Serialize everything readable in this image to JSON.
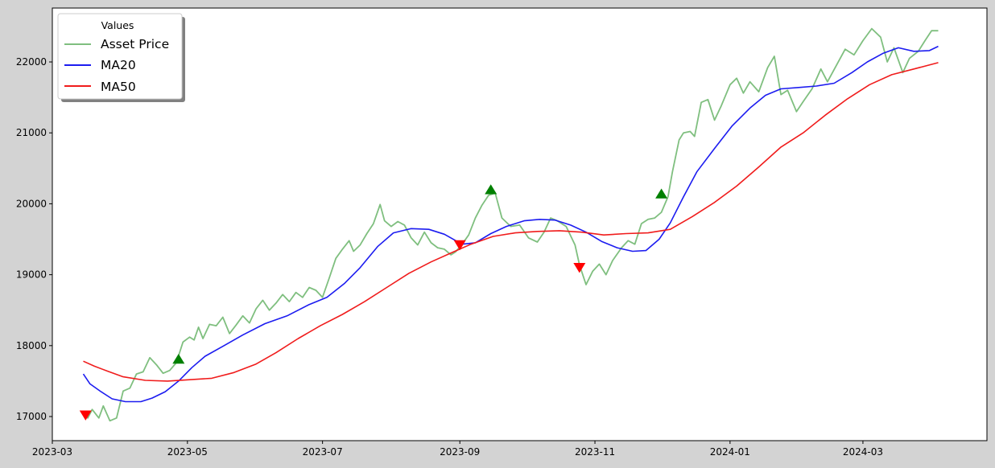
{
  "chart_data": {
    "type": "line",
    "title": "",
    "xlabel": "",
    "ylabel": "",
    "grid": false,
    "legend": {
      "title": "Values",
      "placement": "top-left",
      "entries": [
        {
          "label": "Asset Price",
          "color": "#7fbf7f"
        },
        {
          "label": "MA20",
          "color": "#1c1cf0"
        },
        {
          "label": "MA50",
          "color": "#f01c1c"
        }
      ]
    },
    "xlim": [
      "2023-03-01",
      "2024-04-26"
    ],
    "ylim": [
      16660,
      22760
    ],
    "x_ticks": [
      {
        "date": "2023-03-01",
        "label": "2023-03"
      },
      {
        "date": "2023-05-01",
        "label": "2023-05"
      },
      {
        "date": "2023-07-01",
        "label": "2023-07"
      },
      {
        "date": "2023-09-01",
        "label": "2023-09"
      },
      {
        "date": "2023-11-01",
        "label": "2023-11"
      },
      {
        "date": "2024-01-01",
        "label": "2024-01"
      },
      {
        "date": "2024-03-01",
        "label": "2024-03"
      }
    ],
    "y_ticks": [
      {
        "value": 17000,
        "label": "17000"
      },
      {
        "value": 18000,
        "label": "18000"
      },
      {
        "value": 19000,
        "label": "19000"
      },
      {
        "value": 20000,
        "label": "20000"
      },
      {
        "value": 21000,
        "label": "21000"
      },
      {
        "value": 22000,
        "label": "22000"
      }
    ],
    "series": [
      {
        "name": "Asset Price",
        "color": "#7fbf7f",
        "points": [
          [
            "2023-03-15",
            17050
          ],
          [
            "2023-03-17",
            16980
          ],
          [
            "2023-03-19",
            17100
          ],
          [
            "2023-03-22",
            16980
          ],
          [
            "2023-03-24",
            17150
          ],
          [
            "2023-03-27",
            16940
          ],
          [
            "2023-03-30",
            16980
          ],
          [
            "2023-04-02",
            17360
          ],
          [
            "2023-04-05",
            17400
          ],
          [
            "2023-04-08",
            17600
          ],
          [
            "2023-04-11",
            17630
          ],
          [
            "2023-04-14",
            17830
          ],
          [
            "2023-04-17",
            17730
          ],
          [
            "2023-04-20",
            17610
          ],
          [
            "2023-04-23",
            17650
          ],
          [
            "2023-04-26",
            17760
          ],
          [
            "2023-04-29",
            18050
          ],
          [
            "2023-05-02",
            18120
          ],
          [
            "2023-05-04",
            18080
          ],
          [
            "2023-05-06",
            18260
          ],
          [
            "2023-05-08",
            18100
          ],
          [
            "2023-05-11",
            18300
          ],
          [
            "2023-05-14",
            18280
          ],
          [
            "2023-05-17",
            18400
          ],
          [
            "2023-05-20",
            18170
          ],
          [
            "2023-05-23",
            18290
          ],
          [
            "2023-05-26",
            18420
          ],
          [
            "2023-05-29",
            18320
          ],
          [
            "2023-06-01",
            18520
          ],
          [
            "2023-06-04",
            18640
          ],
          [
            "2023-06-07",
            18500
          ],
          [
            "2023-06-10",
            18600
          ],
          [
            "2023-06-13",
            18720
          ],
          [
            "2023-06-16",
            18620
          ],
          [
            "2023-06-19",
            18750
          ],
          [
            "2023-06-22",
            18680
          ],
          [
            "2023-06-25",
            18820
          ],
          [
            "2023-06-28",
            18780
          ],
          [
            "2023-07-01",
            18680
          ],
          [
            "2023-07-04",
            18950
          ],
          [
            "2023-07-07",
            19230
          ],
          [
            "2023-07-10",
            19360
          ],
          [
            "2023-07-13",
            19480
          ],
          [
            "2023-07-15",
            19330
          ],
          [
            "2023-07-18",
            19420
          ],
          [
            "2023-07-21",
            19580
          ],
          [
            "2023-07-24",
            19720
          ],
          [
            "2023-07-27",
            19990
          ],
          [
            "2023-07-29",
            19760
          ],
          [
            "2023-08-01",
            19680
          ],
          [
            "2023-08-04",
            19750
          ],
          [
            "2023-08-07",
            19700
          ],
          [
            "2023-08-10",
            19520
          ],
          [
            "2023-08-13",
            19420
          ],
          [
            "2023-08-16",
            19600
          ],
          [
            "2023-08-19",
            19450
          ],
          [
            "2023-08-22",
            19380
          ],
          [
            "2023-08-25",
            19360
          ],
          [
            "2023-08-28",
            19280
          ],
          [
            "2023-08-30",
            19320
          ],
          [
            "2023-09-02",
            19430
          ],
          [
            "2023-09-05",
            19560
          ],
          [
            "2023-09-08",
            19800
          ],
          [
            "2023-09-11",
            19980
          ],
          [
            "2023-09-14",
            20120
          ],
          [
            "2023-09-17",
            20150
          ],
          [
            "2023-09-20",
            19800
          ],
          [
            "2023-09-24",
            19680
          ],
          [
            "2023-09-28",
            19700
          ],
          [
            "2023-10-02",
            19520
          ],
          [
            "2023-10-06",
            19460
          ],
          [
            "2023-10-09",
            19600
          ],
          [
            "2023-10-12",
            19800
          ],
          [
            "2023-10-15",
            19760
          ],
          [
            "2023-10-19",
            19680
          ],
          [
            "2023-10-23",
            19420
          ],
          [
            "2023-10-25",
            19140
          ],
          [
            "2023-10-28",
            18860
          ],
          [
            "2023-10-31",
            19050
          ],
          [
            "2023-11-03",
            19150
          ],
          [
            "2023-11-06",
            19000
          ],
          [
            "2023-11-09",
            19200
          ],
          [
            "2023-11-13",
            19380
          ],
          [
            "2023-11-16",
            19480
          ],
          [
            "2023-11-19",
            19430
          ],
          [
            "2023-11-22",
            19720
          ],
          [
            "2023-11-25",
            19780
          ],
          [
            "2023-11-28",
            19800
          ],
          [
            "2023-12-01",
            19880
          ],
          [
            "2023-12-04",
            20100
          ],
          [
            "2023-12-06",
            20450
          ],
          [
            "2023-12-09",
            20900
          ],
          [
            "2023-12-11",
            21000
          ],
          [
            "2023-12-14",
            21020
          ],
          [
            "2023-12-16",
            20950
          ],
          [
            "2023-12-19",
            21430
          ],
          [
            "2023-12-22",
            21470
          ],
          [
            "2023-12-25",
            21180
          ],
          [
            "2023-12-28",
            21380
          ],
          [
            "2024-01-01",
            21680
          ],
          [
            "2024-01-04",
            21770
          ],
          [
            "2024-01-07",
            21560
          ],
          [
            "2024-01-10",
            21720
          ],
          [
            "2024-01-14",
            21580
          ],
          [
            "2024-01-18",
            21920
          ],
          [
            "2024-01-21",
            22080
          ],
          [
            "2024-01-24",
            21540
          ],
          [
            "2024-01-27",
            21600
          ],
          [
            "2024-01-31",
            21300
          ],
          [
            "2024-02-03",
            21440
          ],
          [
            "2024-02-07",
            21620
          ],
          [
            "2024-02-11",
            21900
          ],
          [
            "2024-02-14",
            21720
          ],
          [
            "2024-02-18",
            21950
          ],
          [
            "2024-02-22",
            22180
          ],
          [
            "2024-02-26",
            22100
          ],
          [
            "2024-03-01",
            22300
          ],
          [
            "2024-03-05",
            22470
          ],
          [
            "2024-03-09",
            22350
          ],
          [
            "2024-03-12",
            22000
          ],
          [
            "2024-03-15",
            22200
          ],
          [
            "2024-03-19",
            21850
          ],
          [
            "2024-03-22",
            22050
          ],
          [
            "2024-03-26",
            22150
          ],
          [
            "2024-03-29",
            22300
          ],
          [
            "2024-04-01",
            22440
          ],
          [
            "2024-04-04",
            22440
          ]
        ]
      },
      {
        "name": "MA20",
        "color": "#1c1cf0",
        "points": [
          [
            "2023-03-15",
            17600
          ],
          [
            "2023-03-18",
            17460
          ],
          [
            "2023-03-23",
            17350
          ],
          [
            "2023-03-28",
            17250
          ],
          [
            "2023-04-03",
            17210
          ],
          [
            "2023-04-10",
            17210
          ],
          [
            "2023-04-15",
            17260
          ],
          [
            "2023-04-21",
            17350
          ],
          [
            "2023-04-27",
            17500
          ],
          [
            "2023-05-03",
            17690
          ],
          [
            "2023-05-09",
            17850
          ],
          [
            "2023-05-17",
            17990
          ],
          [
            "2023-05-26",
            18150
          ],
          [
            "2023-06-05",
            18310
          ],
          [
            "2023-06-15",
            18420
          ],
          [
            "2023-06-25",
            18580
          ],
          [
            "2023-07-03",
            18680
          ],
          [
            "2023-07-11",
            18880
          ],
          [
            "2023-07-18",
            19100
          ],
          [
            "2023-07-26",
            19400
          ],
          [
            "2023-08-02",
            19590
          ],
          [
            "2023-08-10",
            19650
          ],
          [
            "2023-08-18",
            19640
          ],
          [
            "2023-08-25",
            19570
          ],
          [
            "2023-09-02",
            19430
          ],
          [
            "2023-09-08",
            19450
          ],
          [
            "2023-09-15",
            19580
          ],
          [
            "2023-09-22",
            19680
          ],
          [
            "2023-09-30",
            19760
          ],
          [
            "2023-10-07",
            19780
          ],
          [
            "2023-10-14",
            19770
          ],
          [
            "2023-10-21",
            19700
          ],
          [
            "2023-10-28",
            19600
          ],
          [
            "2023-11-04",
            19470
          ],
          [
            "2023-11-11",
            19380
          ],
          [
            "2023-11-18",
            19330
          ],
          [
            "2023-11-24",
            19340
          ],
          [
            "2023-11-30",
            19500
          ],
          [
            "2023-12-05",
            19730
          ],
          [
            "2023-12-11",
            20100
          ],
          [
            "2023-12-17",
            20450
          ],
          [
            "2023-12-25",
            20780
          ],
          [
            "2024-01-02",
            21100
          ],
          [
            "2024-01-10",
            21350
          ],
          [
            "2024-01-17",
            21530
          ],
          [
            "2024-01-24",
            21620
          ],
          [
            "2024-02-01",
            21640
          ],
          [
            "2024-02-09",
            21660
          ],
          [
            "2024-02-17",
            21700
          ],
          [
            "2024-02-25",
            21850
          ],
          [
            "2024-03-03",
            22000
          ],
          [
            "2024-03-10",
            22120
          ],
          [
            "2024-03-17",
            22200
          ],
          [
            "2024-03-24",
            22150
          ],
          [
            "2024-03-31",
            22160
          ],
          [
            "2024-04-04",
            22220
          ]
        ]
      },
      {
        "name": "MA50",
        "color": "#f01c1c",
        "points": [
          [
            "2023-03-15",
            17780
          ],
          [
            "2023-03-20",
            17710
          ],
          [
            "2023-03-26",
            17640
          ],
          [
            "2023-04-02",
            17560
          ],
          [
            "2023-04-12",
            17510
          ],
          [
            "2023-04-22",
            17500
          ],
          [
            "2023-05-02",
            17520
          ],
          [
            "2023-05-12",
            17540
          ],
          [
            "2023-05-22",
            17620
          ],
          [
            "2023-06-01",
            17740
          ],
          [
            "2023-06-10",
            17900
          ],
          [
            "2023-06-20",
            18100
          ],
          [
            "2023-06-30",
            18280
          ],
          [
            "2023-07-10",
            18440
          ],
          [
            "2023-07-20",
            18620
          ],
          [
            "2023-07-30",
            18820
          ],
          [
            "2023-08-09",
            19020
          ],
          [
            "2023-08-19",
            19180
          ],
          [
            "2023-08-29",
            19320
          ],
          [
            "2023-09-06",
            19430
          ],
          [
            "2023-09-16",
            19540
          ],
          [
            "2023-09-26",
            19590
          ],
          [
            "2023-10-06",
            19610
          ],
          [
            "2023-10-16",
            19620
          ],
          [
            "2023-10-26",
            19600
          ],
          [
            "2023-11-05",
            19560
          ],
          [
            "2023-11-15",
            19580
          ],
          [
            "2023-11-25",
            19590
          ],
          [
            "2023-12-05",
            19640
          ],
          [
            "2023-12-15",
            19820
          ],
          [
            "2023-12-25",
            20020
          ],
          [
            "2024-01-04",
            20250
          ],
          [
            "2024-01-14",
            20520
          ],
          [
            "2024-01-24",
            20800
          ],
          [
            "2024-02-03",
            21000
          ],
          [
            "2024-02-13",
            21250
          ],
          [
            "2024-02-23",
            21480
          ],
          [
            "2024-03-04",
            21680
          ],
          [
            "2024-03-14",
            21820
          ],
          [
            "2024-03-24",
            21900
          ],
          [
            "2024-04-04",
            21990
          ]
        ]
      }
    ],
    "markers": [
      {
        "type": "sell",
        "shape": "triangle-down",
        "color": "#ff0000",
        "date": "2023-03-16",
        "value": 17030
      },
      {
        "type": "buy",
        "shape": "triangle-up",
        "color": "#008000",
        "date": "2023-04-27",
        "value": 17800
      },
      {
        "type": "sell",
        "shape": "triangle-down",
        "color": "#ff0000",
        "date": "2023-09-01",
        "value": 19430
      },
      {
        "type": "buy",
        "shape": "triangle-up",
        "color": "#008000",
        "date": "2023-09-15",
        "value": 20190
      },
      {
        "type": "sell",
        "shape": "triangle-down",
        "color": "#ff0000",
        "date": "2023-10-25",
        "value": 19110
      },
      {
        "type": "buy",
        "shape": "triangle-up",
        "color": "#008000",
        "date": "2023-12-01",
        "value": 20130
      }
    ]
  }
}
